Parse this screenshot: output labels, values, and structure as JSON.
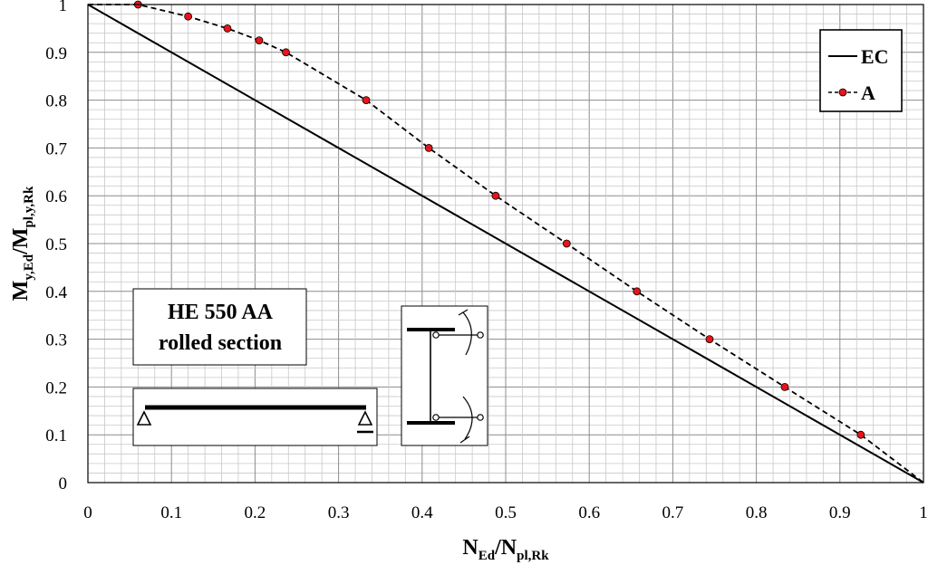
{
  "chart_data": {
    "type": "line",
    "xlabel": {
      "main": "N",
      "sub1": "Ed",
      "sep": "/N",
      "sub2": "pl,Rk"
    },
    "ylabel": {
      "main": "M",
      "sub1": "y,Ed",
      "sep": "/M",
      "sub2": "pl,y,Rk"
    },
    "xlim": [
      0,
      1
    ],
    "ylim": [
      0,
      1
    ],
    "x_ticks": [
      "0",
      "0.1",
      "0.2",
      "0.3",
      "0.4",
      "0.5",
      "0.6",
      "0.7",
      "0.8",
      "0.9",
      "1"
    ],
    "y_ticks": [
      "0",
      "0.1",
      "0.2",
      "0.3",
      "0.4",
      "0.5",
      "0.6",
      "0.7",
      "0.8",
      "0.9",
      "1"
    ],
    "grid": true,
    "legend_position": "top-right",
    "series": [
      {
        "name": "EC",
        "style": "solid",
        "color": "#000000",
        "x": [
          0,
          1
        ],
        "y": [
          1,
          0
        ]
      },
      {
        "name": "A",
        "style": "dashed",
        "color": "#000000",
        "marker_color": "#e8141b",
        "x": [
          0,
          0.06,
          0.12,
          0.167,
          0.205,
          0.237,
          0.333,
          0.408,
          0.488,
          0.573,
          0.657,
          0.744,
          0.834,
          0.925,
          1.0
        ],
        "y": [
          1.0,
          1.0,
          0.975,
          0.95,
          0.925,
          0.9,
          0.8,
          0.7,
          0.6,
          0.5,
          0.4,
          0.3,
          0.2,
          0.1,
          0.0
        ],
        "marker_from": 1,
        "marker_to": 13
      }
    ],
    "annotations": {
      "section_label_line1": "HE 550 AA",
      "section_label_line2": "rolled section"
    }
  }
}
